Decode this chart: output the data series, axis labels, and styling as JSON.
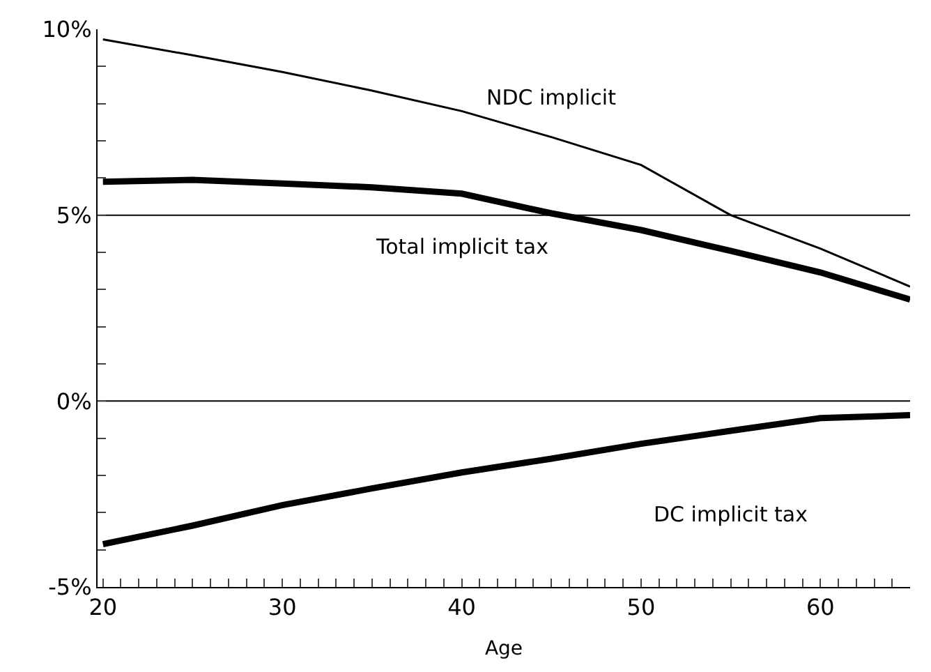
{
  "chart_data": {
    "type": "line",
    "xlabel": "Age",
    "x": [
      20,
      25,
      30,
      35,
      40,
      45,
      50,
      55,
      60,
      65
    ],
    "series": [
      {
        "name": "NDC implicit",
        "color": "#000000",
        "values": [
          9.73,
          9.3,
          8.85,
          8.35,
          7.8,
          7.1,
          6.35,
          5.0,
          4.1,
          3.08
        ]
      },
      {
        "name": "Total implicit tax",
        "color": "#000000",
        "values": [
          5.9,
          5.95,
          5.85,
          5.75,
          5.58,
          5.05,
          4.6,
          4.04,
          3.46,
          2.73
        ]
      },
      {
        "name": "DC implicit tax",
        "color": "#000000",
        "values": [
          -3.85,
          -3.35,
          -2.8,
          -2.35,
          -1.92,
          -1.55,
          -1.15,
          -0.8,
          -0.46,
          -0.38
        ]
      }
    ],
    "xlim": [
      19.7,
      65
    ],
    "ylim": [
      -5,
      10
    ],
    "xticks": [
      20,
      {
        "value": 21,
        "label": null
      },
      {
        "value": 22,
        "label": null
      },
      {
        "value": 23,
        "label": null
      },
      {
        "value": 24,
        "label": null
      },
      {
        "value": 25,
        "label": null
      },
      {
        "value": 26,
        "label": null
      },
      {
        "value": 27,
        "label": null
      },
      {
        "value": 28,
        "label": null
      },
      {
        "value": 29,
        "label": null
      },
      30,
      {
        "value": 31,
        "label": null
      },
      {
        "value": 32,
        "label": null
      },
      {
        "value": 33,
        "label": null
      },
      {
        "value": 34,
        "label": null
      },
      {
        "value": 35,
        "label": null
      },
      {
        "value": 36,
        "label": null
      },
      {
        "value": 37,
        "label": null
      },
      {
        "value": 38,
        "label": null
      },
      {
        "value": 39,
        "label": null
      },
      40,
      {
        "value": 41,
        "label": null
      },
      {
        "value": 42,
        "label": null
      },
      {
        "value": 43,
        "label": null
      },
      {
        "value": 44,
        "label": null
      },
      {
        "value": 45,
        "label": null
      },
      {
        "value": 46,
        "label": null
      },
      {
        "value": 47,
        "label": null
      },
      {
        "value": 48,
        "label": null
      },
      {
        "value": 49,
        "label": null
      },
      50,
      {
        "value": 51,
        "label": null
      },
      {
        "value": 52,
        "label": null
      },
      {
        "value": 53,
        "label": null
      },
      {
        "value": 54,
        "label": null
      },
      {
        "value": 55,
        "label": null
      },
      {
        "value": 56,
        "label": null
      },
      {
        "value": 57,
        "label": null
      },
      {
        "value": 58,
        "label": null
      },
      {
        "value": 59,
        "label": null
      },
      60,
      {
        "value": 61,
        "label": null
      },
      {
        "value": 62,
        "label": null
      },
      {
        "value": 63,
        "label": null
      },
      {
        "value": 64,
        "label": null
      }
    ],
    "yticks": [
      {
        "value": -5,
        "label": "-5%"
      },
      {
        "value": -4,
        "label": null
      },
      {
        "value": -3,
        "label": null
      },
      {
        "value": -2,
        "label": null
      },
      {
        "value": -1,
        "label": null
      },
      {
        "value": 0,
        "label": "0%"
      },
      {
        "value": 1,
        "label": null
      },
      {
        "value": 2,
        "label": null
      },
      {
        "value": 3,
        "label": null
      },
      {
        "value": 4,
        "label": null
      },
      {
        "value": 5,
        "label": "5%"
      },
      {
        "value": 6,
        "label": null
      },
      {
        "value": 7,
        "label": null
      },
      {
        "value": 8,
        "label": null
      },
      {
        "value": 9,
        "label": null
      },
      {
        "value": 10,
        "label": "10%"
      }
    ],
    "ref_lines": [
      {
        "axis": "y",
        "value": 5,
        "color": "#000000"
      },
      {
        "axis": "y",
        "value": 0,
        "color": "#000000"
      }
    ],
    "legend": false,
    "grid": false,
    "marker": "none",
    "line_style": "solid"
  }
}
